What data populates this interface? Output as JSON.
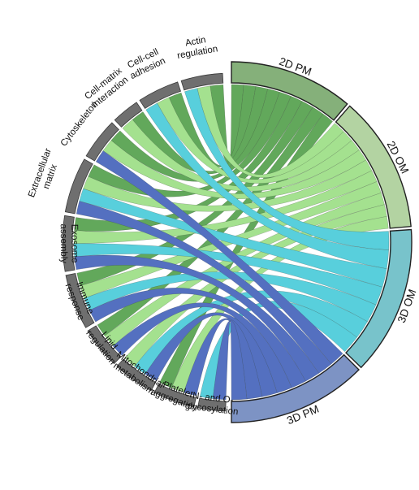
{
  "diagram": {
    "type": "chord",
    "categories": [
      {
        "id": "actin",
        "lines": [
          "Actin",
          "regulation"
        ]
      },
      {
        "id": "cellcell",
        "lines": [
          "Cell-cell",
          "adhesion"
        ]
      },
      {
        "id": "cellmatrix",
        "lines": [
          "Cell-matrix",
          "interaction"
        ]
      },
      {
        "id": "cytoskeleton",
        "lines": [
          "Cytoskeleton"
        ]
      },
      {
        "id": "ecm",
        "lines": [
          "Extracellular",
          "matrix"
        ]
      },
      {
        "id": "exosome",
        "lines": [
          "Exosome",
          "assembly"
        ]
      },
      {
        "id": "immune",
        "lines": [
          "Immune",
          "response"
        ]
      },
      {
        "id": "lipid",
        "lines": [
          "Lipid",
          "regulation"
        ]
      },
      {
        "id": "mito",
        "lines": [
          "Mitochondrial",
          "metabolism"
        ]
      },
      {
        "id": "platelet",
        "lines": [
          "Platelet",
          "aggregation"
        ]
      },
      {
        "id": "glyco",
        "lines": [
          "N- and O-",
          "glycosylation"
        ]
      }
    ],
    "groups": [
      {
        "id": "2dpm",
        "label": "2D PM",
        "color": "#85b07a",
        "chord": "#62a85b"
      },
      {
        "id": "2dom",
        "label": "2D OM",
        "color": "#b3d3a2",
        "chord": "#a4e18f"
      },
      {
        "id": "3dom",
        "label": "3D OM",
        "color": "#78c3cb",
        "chord": "#58cfdc"
      },
      {
        "id": "3dpm",
        "label": "3D PM",
        "color": "#7d93c4",
        "chord": "#5470c0"
      }
    ],
    "category_color": "#6f6f6f",
    "links": {
      "2dpm": [
        "actin",
        "cellcell",
        "cellmatrix",
        "cytoskeleton",
        "ecm",
        "exosome",
        "immune",
        "lipid",
        "platelet"
      ],
      "2dom": [
        "actin",
        "cellcell",
        "cellmatrix",
        "cytoskeleton",
        "ecm",
        "exosome",
        "immune",
        "lipid",
        "mito",
        "platelet"
      ],
      "3dom": [
        "actin",
        "cellcell",
        "ecm",
        "exosome",
        "immune",
        "mito",
        "glyco"
      ],
      "3dpm": [
        "cytoskeleton",
        "ecm",
        "exosome",
        "immune",
        "lipid",
        "mito",
        "platelet",
        "glyco"
      ]
    }
  }
}
